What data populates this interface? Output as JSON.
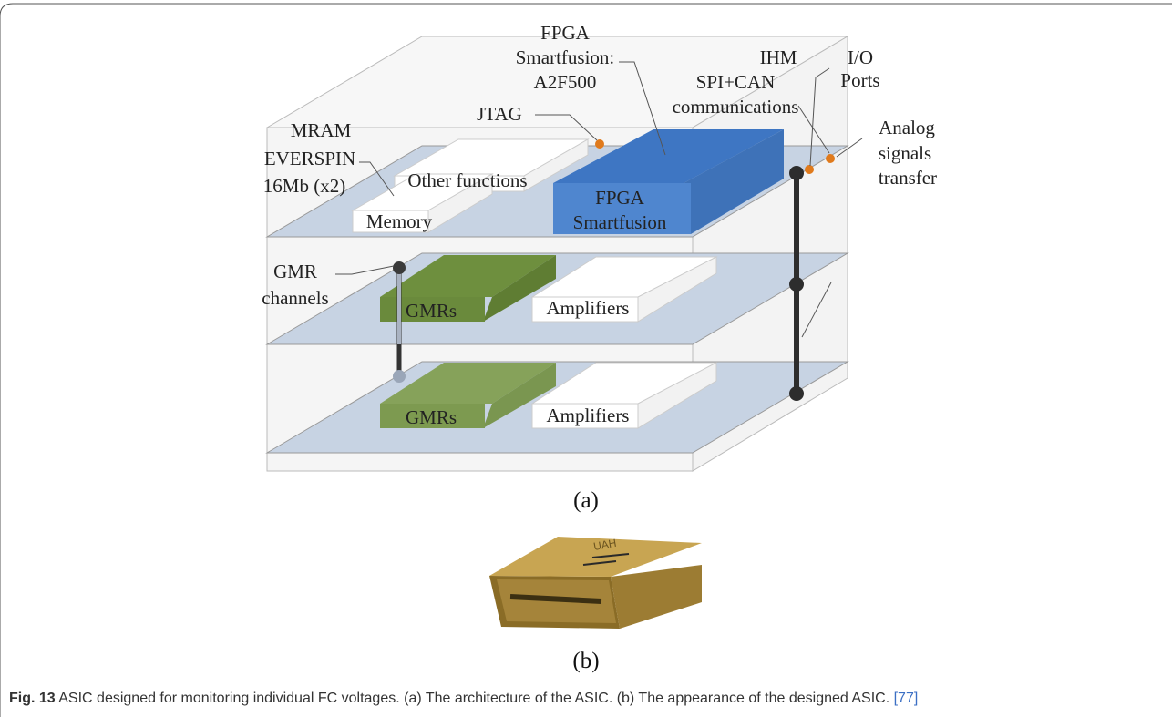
{
  "figure": {
    "labels": {
      "fpga_title": [
        "FPGA",
        "Smartfusion:",
        "A2F500"
      ],
      "jtag": "JTAG",
      "mram": [
        "MRAM",
        "EVERSPIN",
        "16Mb (x2)"
      ],
      "other_functions": "Other functions",
      "memory": "Memory",
      "fpga_block": [
        "FPGA",
        "Smartfusion"
      ],
      "ihm": [
        "IHM",
        "SPI+CAN",
        "communications"
      ],
      "io_ports": [
        "I/O",
        "Ports"
      ],
      "analog": [
        "Analog",
        "signals",
        "transfer"
      ],
      "gmr_channels": [
        "GMR",
        "channels"
      ],
      "gmrs_top": "GMRs",
      "amplifiers_top": "Amplifiers",
      "gmrs_bottom": "GMRs",
      "amplifiers_bottom": "Amplifiers"
    },
    "sub_a": "(a)",
    "sub_b": "(b)",
    "colors": {
      "layer_fill": "#c7d3e3",
      "fpga_blue": "#4f86cf",
      "gmr_green": "#6a8a3c",
      "gmr_green_light": "#7d9a50",
      "pin_orange": "#e07a1c",
      "chip_gold": "#b8953d"
    }
  },
  "caption": {
    "fig_label": "Fig. 13",
    "text": " ASIC designed for monitoring individual FC voltages. (a) The architecture of the ASIC. (b) The appearance of the designed ASIC. ",
    "ref": "[77]"
  }
}
